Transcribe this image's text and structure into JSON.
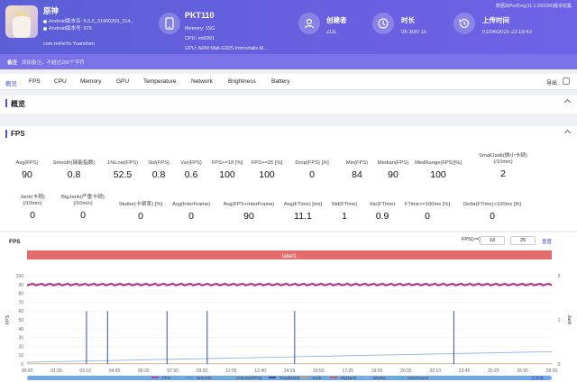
{
  "app": {
    "name": "原神",
    "version_line": "Android版本名: 5.5.0_31400259_314...",
    "build_line": "Android版本号: 979",
    "package": "com.miHoYo.Yuanshen"
  },
  "device": {
    "title": "PKT110",
    "memory": "Memory: 15G",
    "cpu": "CPU: mt6991",
    "gpu": "GPU: ARM Mali-G925-Immortalis M..."
  },
  "creator": {
    "label": "创建者",
    "value": "ZOL"
  },
  "duration": {
    "label": "时长",
    "value": "0h 30m 1s"
  },
  "upload": {
    "label": "上传时间",
    "value": "01/04/2025 23:19:43"
  },
  "top_right_note": "数据由PerfDog(11.1.250206)版本收集",
  "note": {
    "label": "备注",
    "placeholder": "添加备注，不超过200个字符"
  },
  "tabs": [
    "概览",
    "FPS",
    "CPU",
    "Memory",
    "GPU",
    "Temperature",
    "Network",
    "Brightness",
    "Battery"
  ],
  "export_label": "导出",
  "overview": {
    "title": "概览"
  },
  "fps_panel": {
    "title": "FPS"
  },
  "metrics_row1": [
    {
      "label": "Avg(FPS)",
      "value": "90"
    },
    {
      "label": "Smooth(瑞能指数)",
      "value": "0.8"
    },
    {
      "label": "1%Low(FPS)",
      "value": "52.5"
    },
    {
      "label": "Std(FPS)",
      "value": "0.8"
    },
    {
      "label": "Var(FPS)",
      "value": "0.6"
    },
    {
      "label": "FPS>=18 [%]",
      "value": "100"
    },
    {
      "label": "FPS>=25 [%]",
      "value": "100"
    },
    {
      "label": "Drop(FPS) [/h]",
      "value": "0"
    },
    {
      "label": "Min(FPS)",
      "value": "84"
    },
    {
      "label": "Median(FPS)",
      "value": "90"
    },
    {
      "label": "MedRange(FPS)[%]",
      "value": "100"
    },
    {
      "label": "SmallJank(微小卡顿)\n(/10min)",
      "value": "2"
    }
  ],
  "metrics_row2": [
    {
      "label": "Jank(卡顿)\n(/10min)",
      "value": "0"
    },
    {
      "label": "BigJank(严重卡顿)\n(/10min)",
      "value": "0"
    },
    {
      "label": "Stutter(卡顿率) [%]",
      "value": "0"
    },
    {
      "label": "Avg(InterFrame)",
      "value": "0"
    },
    {
      "label": "Avg(FPS+InterFrame)",
      "value": "90"
    },
    {
      "label": "Avg(FTime) [ms]",
      "value": "11.1"
    },
    {
      "label": "Std(FTime)",
      "value": "1"
    },
    {
      "label": "Var(FTime)",
      "value": "0.9"
    },
    {
      "label": "FTime>=100ms [%]",
      "value": "0"
    },
    {
      "label": "Delta(FTime)>100ms [/h]",
      "value": "0"
    }
  ],
  "chart_controls": {
    "title": "FPS",
    "range_label": "FPS(>=)",
    "from": "18",
    "to": "25",
    "reset": "重置"
  },
  "chart_data": {
    "type": "line",
    "label_band": "label1",
    "ylabel": "FPS",
    "y2label": "Jank",
    "ylim": [
      0,
      100
    ],
    "yticks": [
      "100",
      "90",
      "80",
      "70",
      "60",
      "50",
      "40",
      "30",
      "20",
      "10",
      "0"
    ],
    "y2ticks": [
      "2",
      "1",
      "0"
    ],
    "xticks": [
      "00:00",
      "01:30",
      "03:10",
      "04:45",
      "06:20",
      "07:55",
      "09:30",
      "11:05",
      "12:40",
      "14:15",
      "15:50",
      "17:25",
      "19:00",
      "20:35",
      "22:10",
      "23:45",
      "25:20",
      "26:55",
      "28:30"
    ],
    "x_minutes_range": [
      0,
      30
    ],
    "series": [
      {
        "name": "FPS",
        "color": "#b03a8a",
        "values": [
          90,
          90,
          90,
          90,
          90,
          90,
          90,
          90,
          90,
          90,
          90,
          90,
          90,
          90,
          90,
          90,
          90,
          90,
          90,
          90,
          90,
          90,
          90,
          90,
          90,
          90,
          90,
          90,
          90,
          90
        ]
      },
      {
        "name": "Smooth",
        "color": "#4a9bd1",
        "values": []
      },
      {
        "name": "1%Low(FPS)",
        "color": "#5cc7b4",
        "values": []
      },
      {
        "name": "SmallJank",
        "color": "#2a3a8c",
        "spikes_at_min": [
          3.4,
          4.6,
          8.0,
          10.3,
          15.3,
          24.4
        ]
      },
      {
        "name": "Jank",
        "color": "#e2974a",
        "values": []
      },
      {
        "name": "BigJank",
        "color": "#d24e4e",
        "values": []
      },
      {
        "name": "Stutter",
        "color": "#8fb5e6",
        "x": [
          0,
          30
        ],
        "values": [
          2,
          14
        ]
      },
      {
        "name": "InterFrame",
        "color": "#46b3d0",
        "values": []
      }
    ],
    "bottom_label": "全屏幕",
    "legend": "bottom"
  }
}
